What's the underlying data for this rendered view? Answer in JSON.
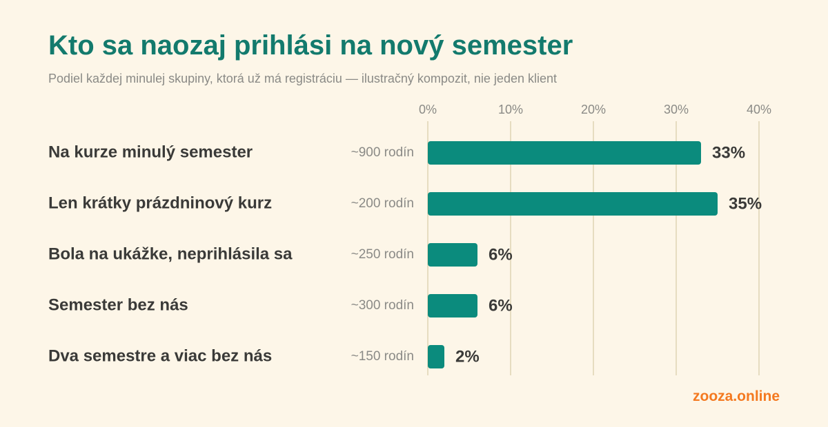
{
  "title": "Kto sa naozaj prihlási na nový semester",
  "subtitle": "Podiel každej minulej skupiny, ktorá už má registráciu — ilustračný kompozit, nie jeden klient",
  "brand": "zooza.online",
  "colors": {
    "bar": "#0b8b7d",
    "title": "#137a6d",
    "grid": "#e6dcc0",
    "brand": "#f47920"
  },
  "chart_data": {
    "type": "bar",
    "orientation": "horizontal",
    "categories": [
      "Na kurze minulý semester",
      "Len krátky prázdninový kurz",
      "Bola na ukážke, neprihlásila sa",
      "Semester bez nás",
      "Dva semestre a viac bez nás"
    ],
    "counts": [
      "~900 rodín",
      "~200 rodín",
      "~250 rodín",
      "~300 rodín",
      "~150 rodín"
    ],
    "values": [
      33,
      35,
      6,
      6,
      2
    ],
    "value_labels": [
      "33%",
      "35%",
      "6%",
      "6%",
      "2%"
    ],
    "xlim": [
      0,
      40
    ],
    "ticks": [
      0,
      10,
      20,
      30,
      40
    ],
    "tick_labels": [
      "0%",
      "10%",
      "20%",
      "30%",
      "40%"
    ],
    "grid": true,
    "legend": "none"
  }
}
